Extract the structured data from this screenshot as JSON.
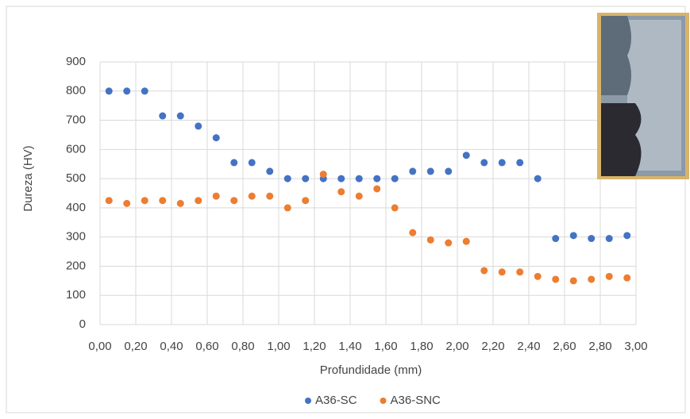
{
  "chart_data": {
    "type": "scatter",
    "xlabel": "Profundidade (mm)",
    "ylabel": "Dureza (HV)",
    "x": [
      0.05,
      0.15,
      0.25,
      0.35,
      0.45,
      0.55,
      0.65,
      0.75,
      0.85,
      0.95,
      1.05,
      1.15,
      1.25,
      1.35,
      1.45,
      1.55,
      1.65,
      1.75,
      1.85,
      1.95,
      2.05,
      2.15,
      2.25,
      2.35,
      2.45,
      2.55,
      2.65,
      2.75,
      2.85,
      2.95
    ],
    "series": [
      {
        "name": "A36-SC",
        "color": "#4472c4",
        "values": [
          800,
          800,
          800,
          715,
          715,
          680,
          640,
          555,
          555,
          525,
          500,
          500,
          500,
          500,
          500,
          500,
          500,
          525,
          525,
          525,
          580,
          555,
          555,
          555,
          500,
          295,
          305,
          295,
          295,
          305
        ]
      },
      {
        "name": "A36-SNC",
        "color": "#ed7d31",
        "values": [
          425,
          415,
          425,
          425,
          415,
          425,
          440,
          425,
          440,
          440,
          400,
          425,
          515,
          455,
          440,
          465,
          400,
          315,
          290,
          280,
          285,
          185,
          180,
          180,
          165,
          155,
          150,
          155,
          165,
          160
        ]
      }
    ],
    "xlim": [
      0,
      3
    ],
    "ylim": [
      0,
      900
    ],
    "xticks": [
      {
        "value": 0,
        "label": "0,00"
      },
      {
        "value": 0.2,
        "label": "0,20"
      },
      {
        "value": 0.4,
        "label": "0,40"
      },
      {
        "value": 0.6,
        "label": "0,60"
      },
      {
        "value": 0.8,
        "label": "0,80"
      },
      {
        "value": 1,
        "label": "1,00"
      },
      {
        "value": 1.2,
        "label": "1,20"
      },
      {
        "value": 1.4,
        "label": "1,40"
      },
      {
        "value": 1.6,
        "label": "1,60"
      },
      {
        "value": 1.8,
        "label": "1,80"
      },
      {
        "value": 2,
        "label": "2,00"
      },
      {
        "value": 2.2,
        "label": "2,20"
      },
      {
        "value": 2.4,
        "label": "2,40"
      },
      {
        "value": 2.6,
        "label": "2,60"
      },
      {
        "value": 2.8,
        "label": "2,80"
      },
      {
        "value": 3,
        "label": "3,00"
      }
    ],
    "yticks": [
      0,
      100,
      200,
      300,
      400,
      500,
      600,
      700,
      800,
      900
    ],
    "grid": true,
    "legend": "bottom"
  }
}
